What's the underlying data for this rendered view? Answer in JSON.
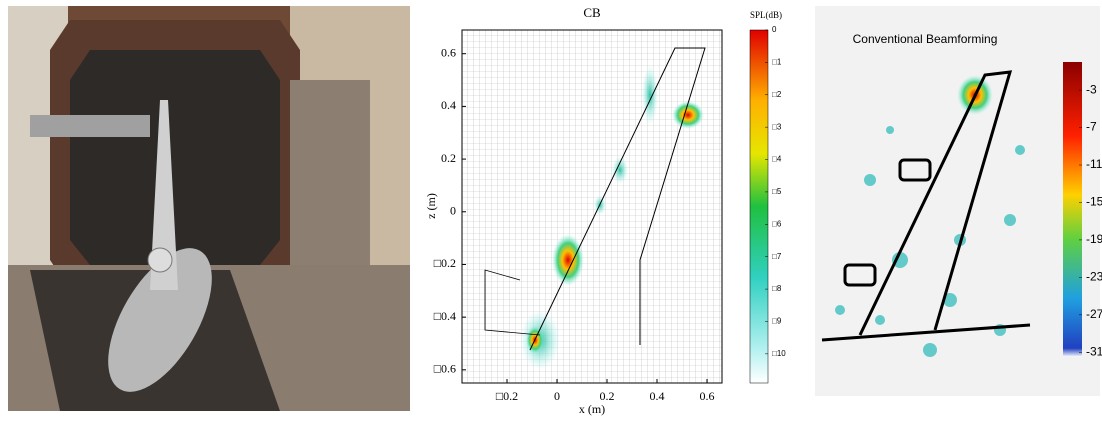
{
  "middle_plot": {
    "title": "CB",
    "xlabel": "x (m)",
    "ylabel": "z (m)",
    "xlim": [
      -0.38,
      0.66
    ],
    "ylim": [
      -0.65,
      0.69
    ],
    "xticks": [
      {
        "value": -0.2,
        "label": "□0.2"
      },
      0,
      0.2,
      0.4,
      0.6
    ],
    "yticks": [
      {
        "value": -0.6,
        "label": "□0.6"
      },
      {
        "value": -0.4,
        "label": "□0.4"
      },
      {
        "value": -0.2,
        "label": "□0.2"
      },
      0,
      0.2,
      0.4,
      0.6
    ],
    "colorbar": {
      "title": "SPL(dB)",
      "lim": [
        -10.9,
        0
      ],
      "ticks": [
        0,
        {
          "value": -1,
          "label": "□1"
        },
        {
          "value": -2,
          "label": "□2"
        },
        {
          "value": -3,
          "label": "□3"
        },
        {
          "value": -4,
          "label": "□4"
        },
        {
          "value": -5,
          "label": "□5"
        },
        {
          "value": -6,
          "label": "□6"
        },
        {
          "value": -7,
          "label": "□7"
        },
        {
          "value": -8,
          "label": "□8"
        },
        {
          "value": -9,
          "label": "□9"
        },
        {
          "value": -10,
          "label": "□10"
        }
      ]
    }
  },
  "right_plot": {
    "title": "Conventional Beamforming",
    "colorbar": {
      "lim": [
        -31.5,
        0
      ],
      "ticks": [
        -3,
        -7,
        -11,
        -15,
        -19,
        -23,
        -27,
        -31
      ]
    }
  }
}
